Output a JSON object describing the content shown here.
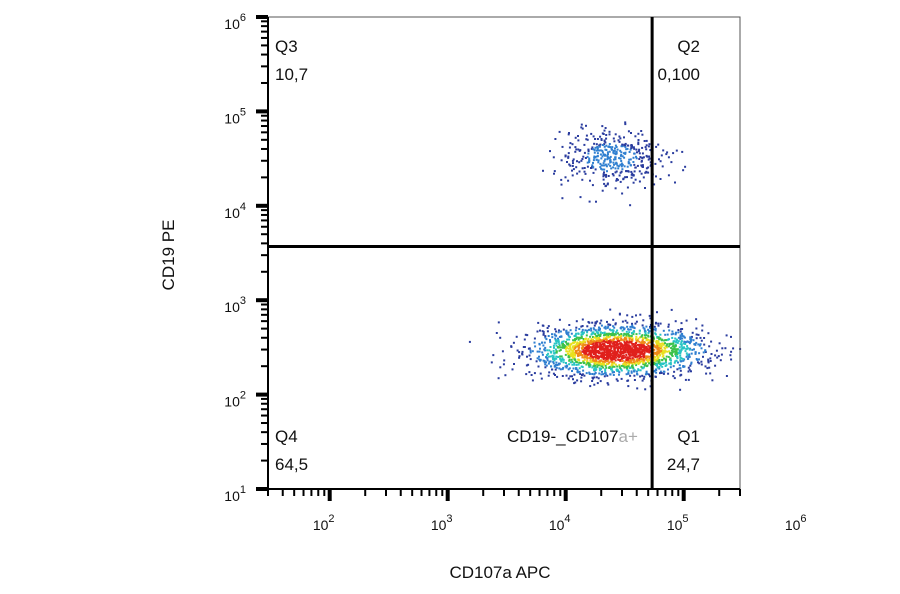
{
  "chart_data": {
    "type": "scatter",
    "subtype": "flow-cytometry-density-dot-plot",
    "xlabel": "CD107a APC",
    "ylabel": "CD19 PE",
    "x_scale": "log",
    "y_scale": "log",
    "xlim": [
      30,
      300000
    ],
    "ylim": [
      10,
      1000000
    ],
    "x_ticks": [
      {
        "base": "10",
        "exp": "2",
        "value": 100
      },
      {
        "base": "10",
        "exp": "3",
        "value": 1000
      },
      {
        "base": "10",
        "exp": "4",
        "value": 10000
      },
      {
        "base": "10",
        "exp": "5",
        "value": 100000
      },
      {
        "base": "10",
        "exp": "6",
        "value": 1000000
      }
    ],
    "y_ticks": [
      {
        "base": "10",
        "exp": "1",
        "value": 10
      },
      {
        "base": "10",
        "exp": "2",
        "value": 100
      },
      {
        "base": "10",
        "exp": "3",
        "value": 1000
      },
      {
        "base": "10",
        "exp": "4",
        "value": 10000
      },
      {
        "base": "10",
        "exp": "5",
        "value": 100000
      },
      {
        "base": "10",
        "exp": "6",
        "value": 1000000
      }
    ],
    "gates": {
      "x_threshold": 54000,
      "y_threshold": 3700
    },
    "quadrants": [
      {
        "id": "Q1",
        "name": "Q1",
        "value": "24,7",
        "extra_dark": "CD19-_CD107",
        "extra_light": "a+",
        "position": "bottom-right"
      },
      {
        "id": "Q2",
        "name": "Q2",
        "value": "0,100",
        "position": "top-right"
      },
      {
        "id": "Q3",
        "name": "Q3",
        "value": "10,7",
        "position": "top-left"
      },
      {
        "id": "Q4",
        "name": "Q4",
        "value": "64,5",
        "position": "bottom-left"
      }
    ],
    "populations": [
      {
        "center_x": 24000,
        "center_y": 33000,
        "spread_log_x": 0.22,
        "spread_log_y": 0.15,
        "events": 420
      },
      {
        "center_x": 27000,
        "center_y": 300,
        "spread_log_x": 0.36,
        "spread_log_y": 0.13,
        "events": 2200
      }
    ],
    "density_colors": [
      "#2a3c9e",
      "#2f7fd0",
      "#27c4c4",
      "#3cc24a",
      "#e8e020",
      "#f08a18",
      "#e0201c"
    ],
    "grid": false,
    "legend": "none"
  }
}
